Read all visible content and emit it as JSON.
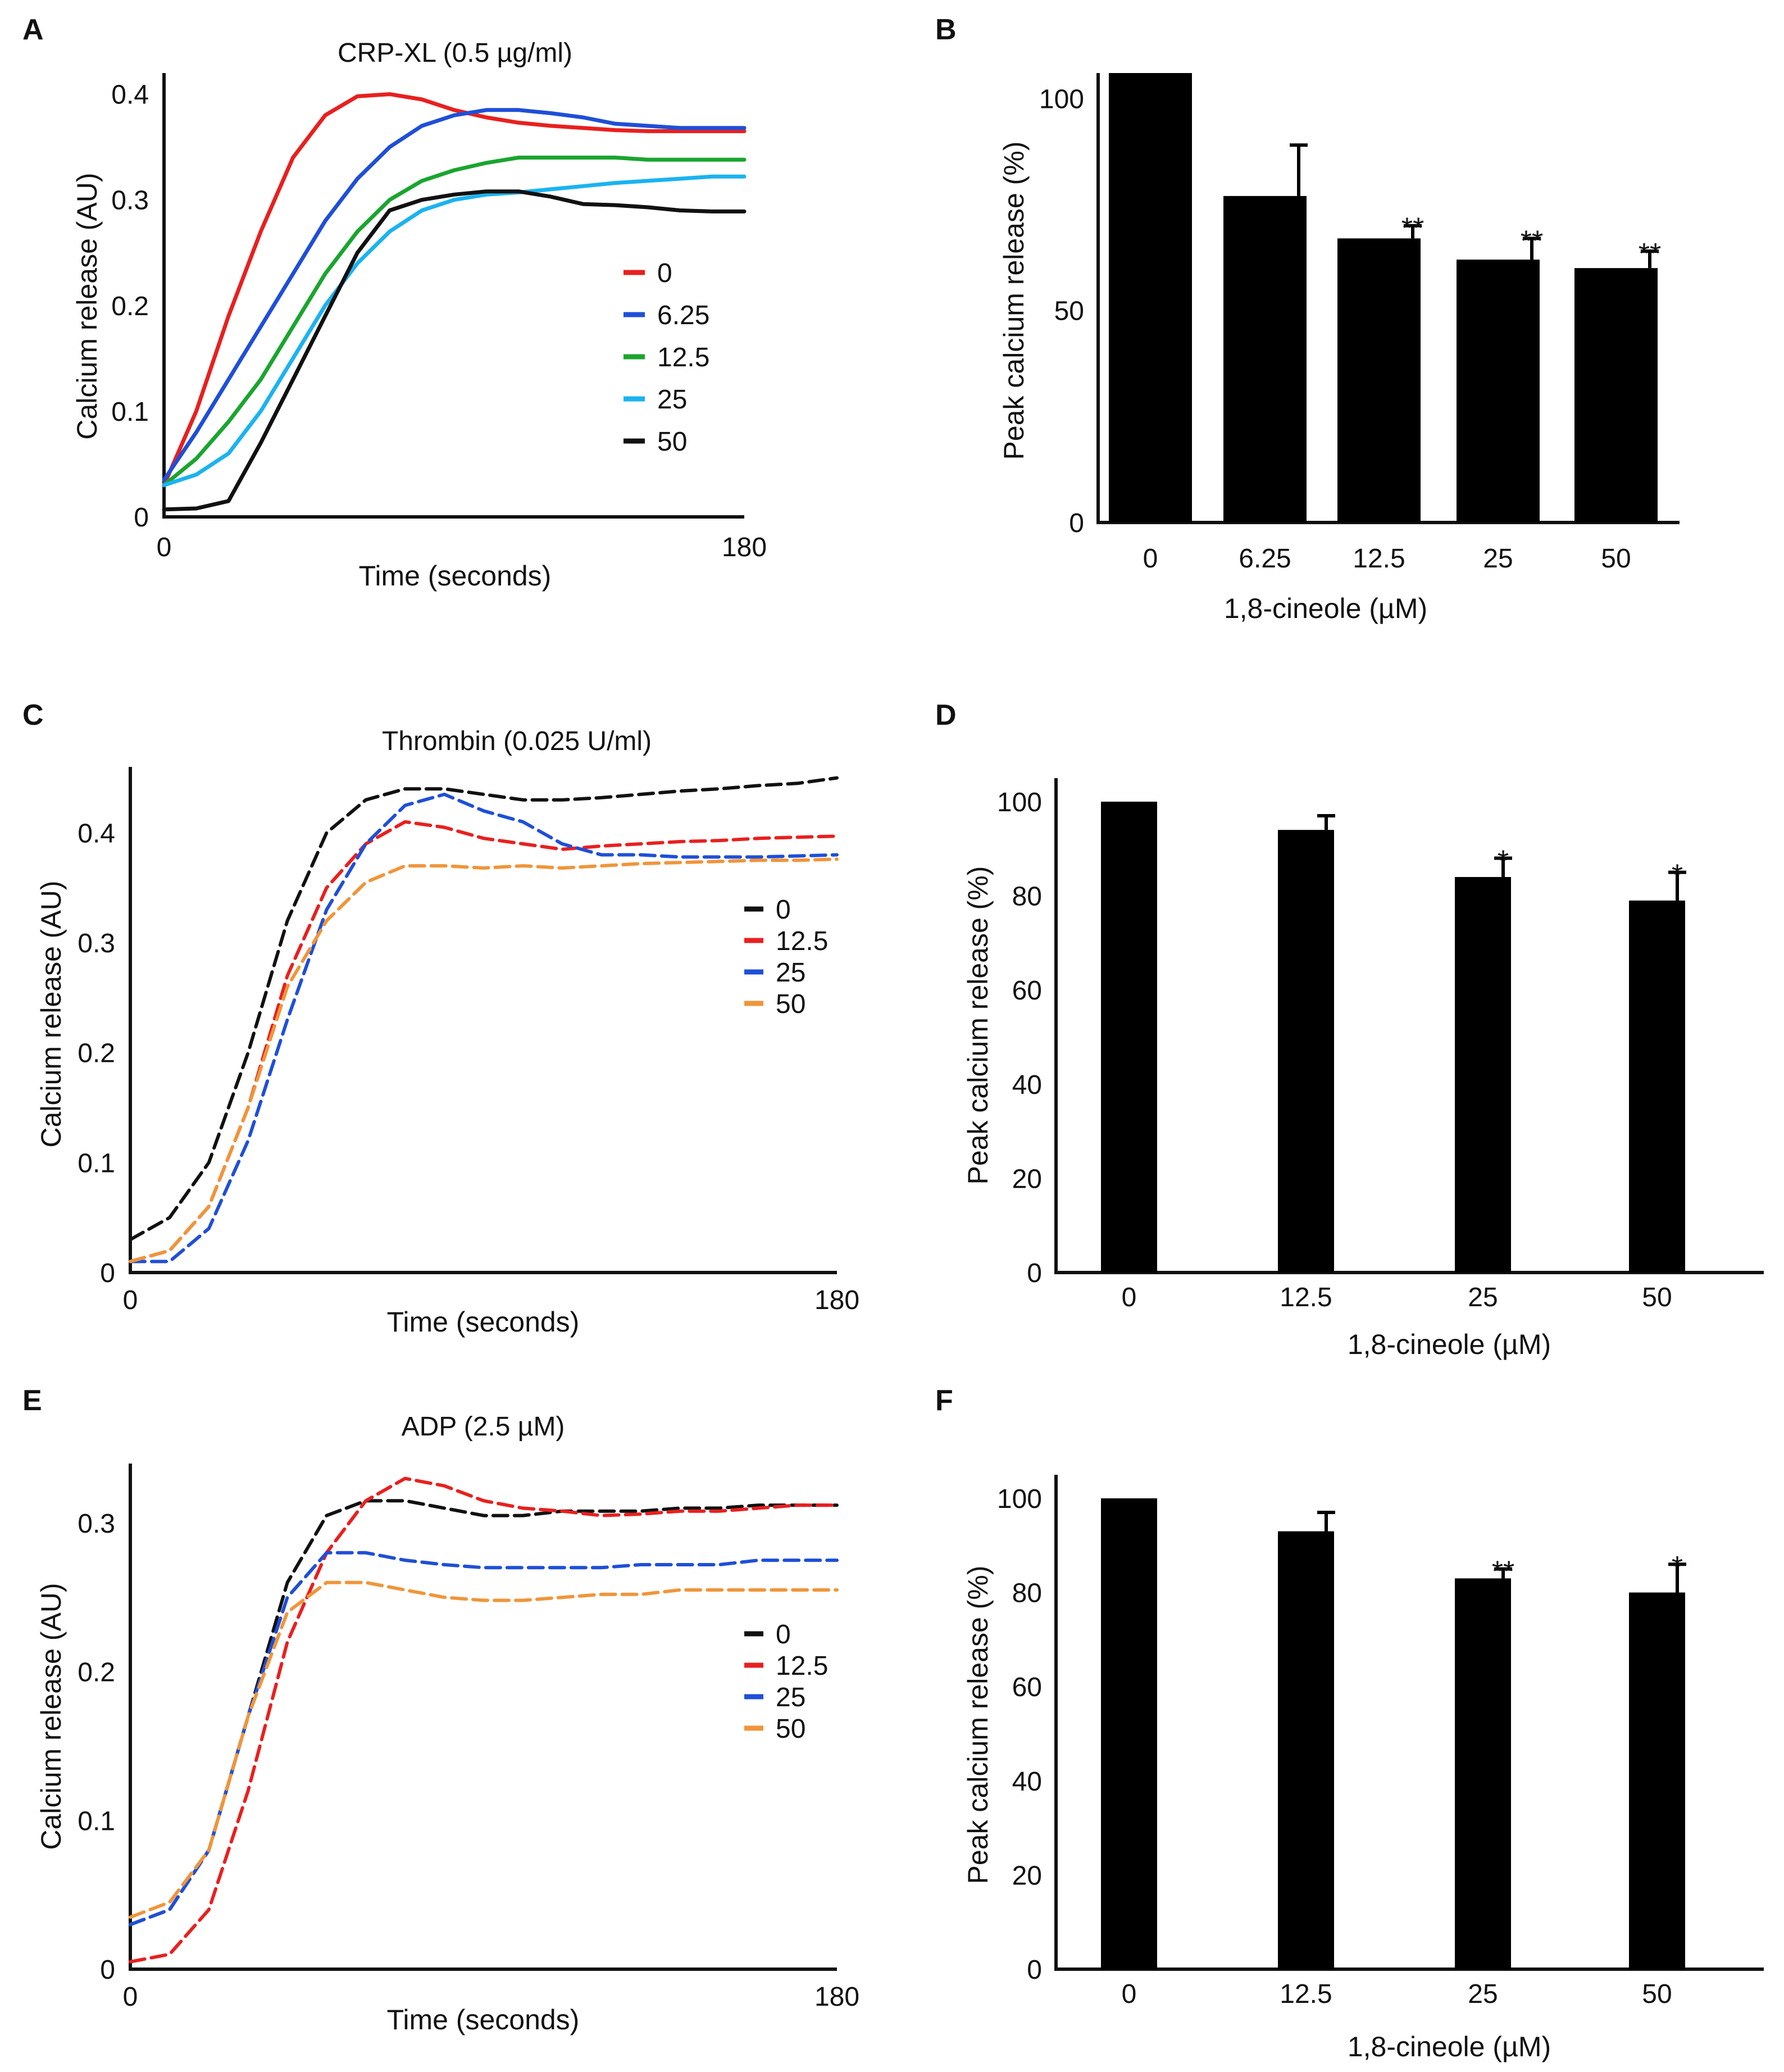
{
  "chart_data": [
    {
      "panel": "A",
      "type": "line",
      "title": "CRP-XL (0.5 µg/ml)",
      "xlabel": "Time (seconds)",
      "ylabel": "Calcium release (AU)",
      "xlim": [
        0,
        180
      ],
      "ylim": [
        0,
        0.42
      ],
      "x_ticks": [
        0,
        180
      ],
      "y_ticks": [
        0,
        0.1,
        0.2,
        0.3,
        0.4
      ],
      "legend": "right",
      "series": [
        {
          "name": "0",
          "color": "#e8201f",
          "dashed": false,
          "x": [
            0,
            10,
            20,
            30,
            40,
            50,
            60,
            70,
            80,
            90,
            100,
            110,
            120,
            130,
            140,
            150,
            160,
            170,
            180
          ],
          "y": [
            0.03,
            0.1,
            0.19,
            0.27,
            0.34,
            0.38,
            0.398,
            0.4,
            0.395,
            0.385,
            0.378,
            0.373,
            0.37,
            0.368,
            0.366,
            0.365,
            0.365,
            0.365,
            0.365
          ]
        },
        {
          "name": "6.25",
          "color": "#1f4fd8",
          "dashed": false,
          "x": [
            0,
            10,
            20,
            30,
            40,
            50,
            60,
            70,
            80,
            90,
            100,
            110,
            120,
            130,
            140,
            150,
            160,
            170,
            180
          ],
          "y": [
            0.035,
            0.08,
            0.13,
            0.18,
            0.23,
            0.28,
            0.32,
            0.35,
            0.37,
            0.38,
            0.385,
            0.385,
            0.382,
            0.378,
            0.372,
            0.37,
            0.368,
            0.368,
            0.368
          ]
        },
        {
          "name": "12.5",
          "color": "#1aa52f",
          "dashed": false,
          "x": [
            0,
            10,
            20,
            30,
            40,
            50,
            60,
            70,
            80,
            90,
            100,
            110,
            120,
            130,
            140,
            150,
            160,
            170,
            180
          ],
          "y": [
            0.03,
            0.055,
            0.09,
            0.13,
            0.18,
            0.23,
            0.27,
            0.3,
            0.318,
            0.328,
            0.335,
            0.34,
            0.34,
            0.34,
            0.34,
            0.338,
            0.338,
            0.338,
            0.338
          ]
        },
        {
          "name": "25",
          "color": "#1bb3f0",
          "dashed": false,
          "x": [
            0,
            10,
            20,
            30,
            40,
            50,
            60,
            70,
            80,
            90,
            100,
            110,
            120,
            130,
            140,
            150,
            160,
            170,
            180
          ],
          "y": [
            0.03,
            0.04,
            0.06,
            0.1,
            0.15,
            0.2,
            0.24,
            0.27,
            0.29,
            0.3,
            0.305,
            0.307,
            0.31,
            0.313,
            0.316,
            0.318,
            0.32,
            0.322,
            0.322
          ]
        },
        {
          "name": "50",
          "color": "#111111",
          "dashed": false,
          "x": [
            0,
            10,
            20,
            30,
            40,
            50,
            60,
            70,
            80,
            90,
            100,
            110,
            120,
            130,
            140,
            150,
            160,
            170,
            180
          ],
          "y": [
            0.007,
            0.008,
            0.015,
            0.07,
            0.13,
            0.19,
            0.25,
            0.29,
            0.3,
            0.305,
            0.308,
            0.308,
            0.303,
            0.296,
            0.295,
            0.293,
            0.29,
            0.289,
            0.289
          ]
        }
      ]
    },
    {
      "panel": "B",
      "type": "bar",
      "xlabel": "1,8-cineole (µM)",
      "ylabel": "Peak calcium release (%)",
      "ylim": [
        0,
        106
      ],
      "y_ticks": [
        0,
        50,
        100
      ],
      "categories": [
        "0",
        "6.25",
        "12.5",
        "25",
        "50"
      ],
      "values": [
        106,
        77,
        67,
        62,
        60
      ],
      "errors": [
        0,
        12,
        3,
        5,
        4
      ],
      "annotations": [
        "",
        "",
        "**",
        "**",
        "**"
      ]
    },
    {
      "panel": "C",
      "type": "line",
      "title": "Thrombin (0.025 U/ml)",
      "xlabel": "Time (seconds)",
      "ylabel": "Calcium release (AU)",
      "xlim": [
        0,
        180
      ],
      "ylim": [
        0,
        0.46
      ],
      "x_ticks": [
        0,
        180
      ],
      "y_ticks": [
        0,
        0.1,
        0.2,
        0.3,
        0.4
      ],
      "legend": "right",
      "series": [
        {
          "name": "0",
          "color": "#111111",
          "dashed": true,
          "x": [
            0,
            10,
            20,
            30,
            40,
            50,
            60,
            70,
            80,
            90,
            100,
            110,
            120,
            130,
            140,
            150,
            160,
            170,
            180
          ],
          "y": [
            0.03,
            0.05,
            0.1,
            0.2,
            0.32,
            0.4,
            0.43,
            0.44,
            0.44,
            0.435,
            0.43,
            0.43,
            0.432,
            0.435,
            0.438,
            0.44,
            0.443,
            0.445,
            0.45
          ]
        },
        {
          "name": "12.5",
          "color": "#e8201f",
          "dashed": true,
          "x": [
            0,
            10,
            20,
            30,
            40,
            50,
            60,
            70,
            80,
            90,
            100,
            110,
            120,
            130,
            140,
            150,
            160,
            170,
            180
          ],
          "y": [
            0.01,
            0.02,
            0.06,
            0.15,
            0.27,
            0.35,
            0.39,
            0.41,
            0.405,
            0.395,
            0.39,
            0.385,
            0.388,
            0.39,
            0.392,
            0.393,
            0.395,
            0.396,
            0.397
          ]
        },
        {
          "name": "25",
          "color": "#1f4fd8",
          "dashed": true,
          "x": [
            0,
            10,
            20,
            30,
            40,
            50,
            60,
            70,
            80,
            90,
            100,
            110,
            120,
            130,
            140,
            150,
            160,
            170,
            180
          ],
          "y": [
            0.01,
            0.01,
            0.04,
            0.12,
            0.23,
            0.33,
            0.39,
            0.425,
            0.435,
            0.42,
            0.41,
            0.39,
            0.38,
            0.38,
            0.378,
            0.378,
            0.378,
            0.379,
            0.38
          ]
        },
        {
          "name": "50",
          "color": "#f0953a",
          "dashed": true,
          "x": [
            0,
            10,
            20,
            30,
            40,
            50,
            60,
            70,
            80,
            90,
            100,
            110,
            120,
            130,
            140,
            150,
            160,
            170,
            180
          ],
          "y": [
            0.01,
            0.02,
            0.06,
            0.15,
            0.26,
            0.32,
            0.355,
            0.37,
            0.37,
            0.368,
            0.37,
            0.368,
            0.37,
            0.372,
            0.373,
            0.374,
            0.375,
            0.375,
            0.376
          ]
        }
      ]
    },
    {
      "panel": "D",
      "type": "bar",
      "xlabel": "1,8-cineole (µM)",
      "ylabel": "Peak calcium release (%)",
      "ylim": [
        0,
        105
      ],
      "y_ticks": [
        0,
        20,
        40,
        60,
        80,
        100
      ],
      "categories": [
        "0",
        "12.5",
        "25",
        "50"
      ],
      "values": [
        100,
        94,
        84,
        79
      ],
      "errors": [
        0,
        3,
        4,
        6
      ],
      "annotations": [
        "",
        "",
        "*",
        "*"
      ]
    },
    {
      "panel": "E",
      "type": "line",
      "title": "ADP (2.5 µM)",
      "xlabel": "Time (seconds)",
      "ylabel": "Calcium release (AU)",
      "xlim": [
        0,
        180
      ],
      "ylim": [
        0,
        0.34
      ],
      "x_ticks": [
        0,
        180
      ],
      "y_ticks": [
        0,
        0.1,
        0.2,
        0.3
      ],
      "legend": "right",
      "series": [
        {
          "name": "0",
          "color": "#111111",
          "dashed": true,
          "x": [
            0,
            10,
            20,
            30,
            40,
            50,
            60,
            70,
            80,
            90,
            100,
            110,
            120,
            130,
            140,
            150,
            160,
            170,
            180
          ],
          "y": [
            0.03,
            0.04,
            0.08,
            0.17,
            0.26,
            0.305,
            0.315,
            0.315,
            0.31,
            0.305,
            0.305,
            0.308,
            0.308,
            0.308,
            0.31,
            0.31,
            0.312,
            0.312,
            0.312
          ]
        },
        {
          "name": "12.5",
          "color": "#e8201f",
          "dashed": true,
          "x": [
            0,
            10,
            20,
            30,
            40,
            50,
            60,
            70,
            80,
            90,
            100,
            110,
            120,
            130,
            140,
            150,
            160,
            170,
            180
          ],
          "y": [
            0.005,
            0.01,
            0.04,
            0.12,
            0.22,
            0.28,
            0.315,
            0.33,
            0.325,
            0.315,
            0.31,
            0.308,
            0.305,
            0.306,
            0.308,
            0.308,
            0.31,
            0.312,
            0.312
          ]
        },
        {
          "name": "25",
          "color": "#1f4fd8",
          "dashed": true,
          "x": [
            0,
            10,
            20,
            30,
            40,
            50,
            60,
            70,
            80,
            90,
            100,
            110,
            120,
            130,
            140,
            150,
            160,
            170,
            180
          ],
          "y": [
            0.03,
            0.04,
            0.08,
            0.17,
            0.25,
            0.28,
            0.28,
            0.275,
            0.272,
            0.27,
            0.27,
            0.27,
            0.27,
            0.272,
            0.272,
            0.272,
            0.275,
            0.275,
            0.275
          ]
        },
        {
          "name": "50",
          "color": "#f0953a",
          "dashed": true,
          "x": [
            0,
            10,
            20,
            30,
            40,
            50,
            60,
            70,
            80,
            90,
            100,
            110,
            120,
            130,
            140,
            150,
            160,
            170,
            180
          ],
          "y": [
            0.035,
            0.045,
            0.08,
            0.17,
            0.24,
            0.26,
            0.26,
            0.255,
            0.25,
            0.248,
            0.248,
            0.25,
            0.252,
            0.252,
            0.255,
            0.255,
            0.255,
            0.255,
            0.255
          ]
        }
      ]
    },
    {
      "panel": "F",
      "type": "bar",
      "xlabel": "1,8-cineole (µM)",
      "ylabel": "Peak calcium release (%)",
      "ylim": [
        0,
        105
      ],
      "y_ticks": [
        0,
        20,
        40,
        60,
        80,
        100
      ],
      "categories": [
        "0",
        "12.5",
        "25",
        "50"
      ],
      "values": [
        100,
        93,
        83,
        80
      ],
      "errors": [
        0,
        4,
        2,
        6
      ],
      "annotations": [
        "",
        "",
        "**",
        "*"
      ]
    }
  ]
}
